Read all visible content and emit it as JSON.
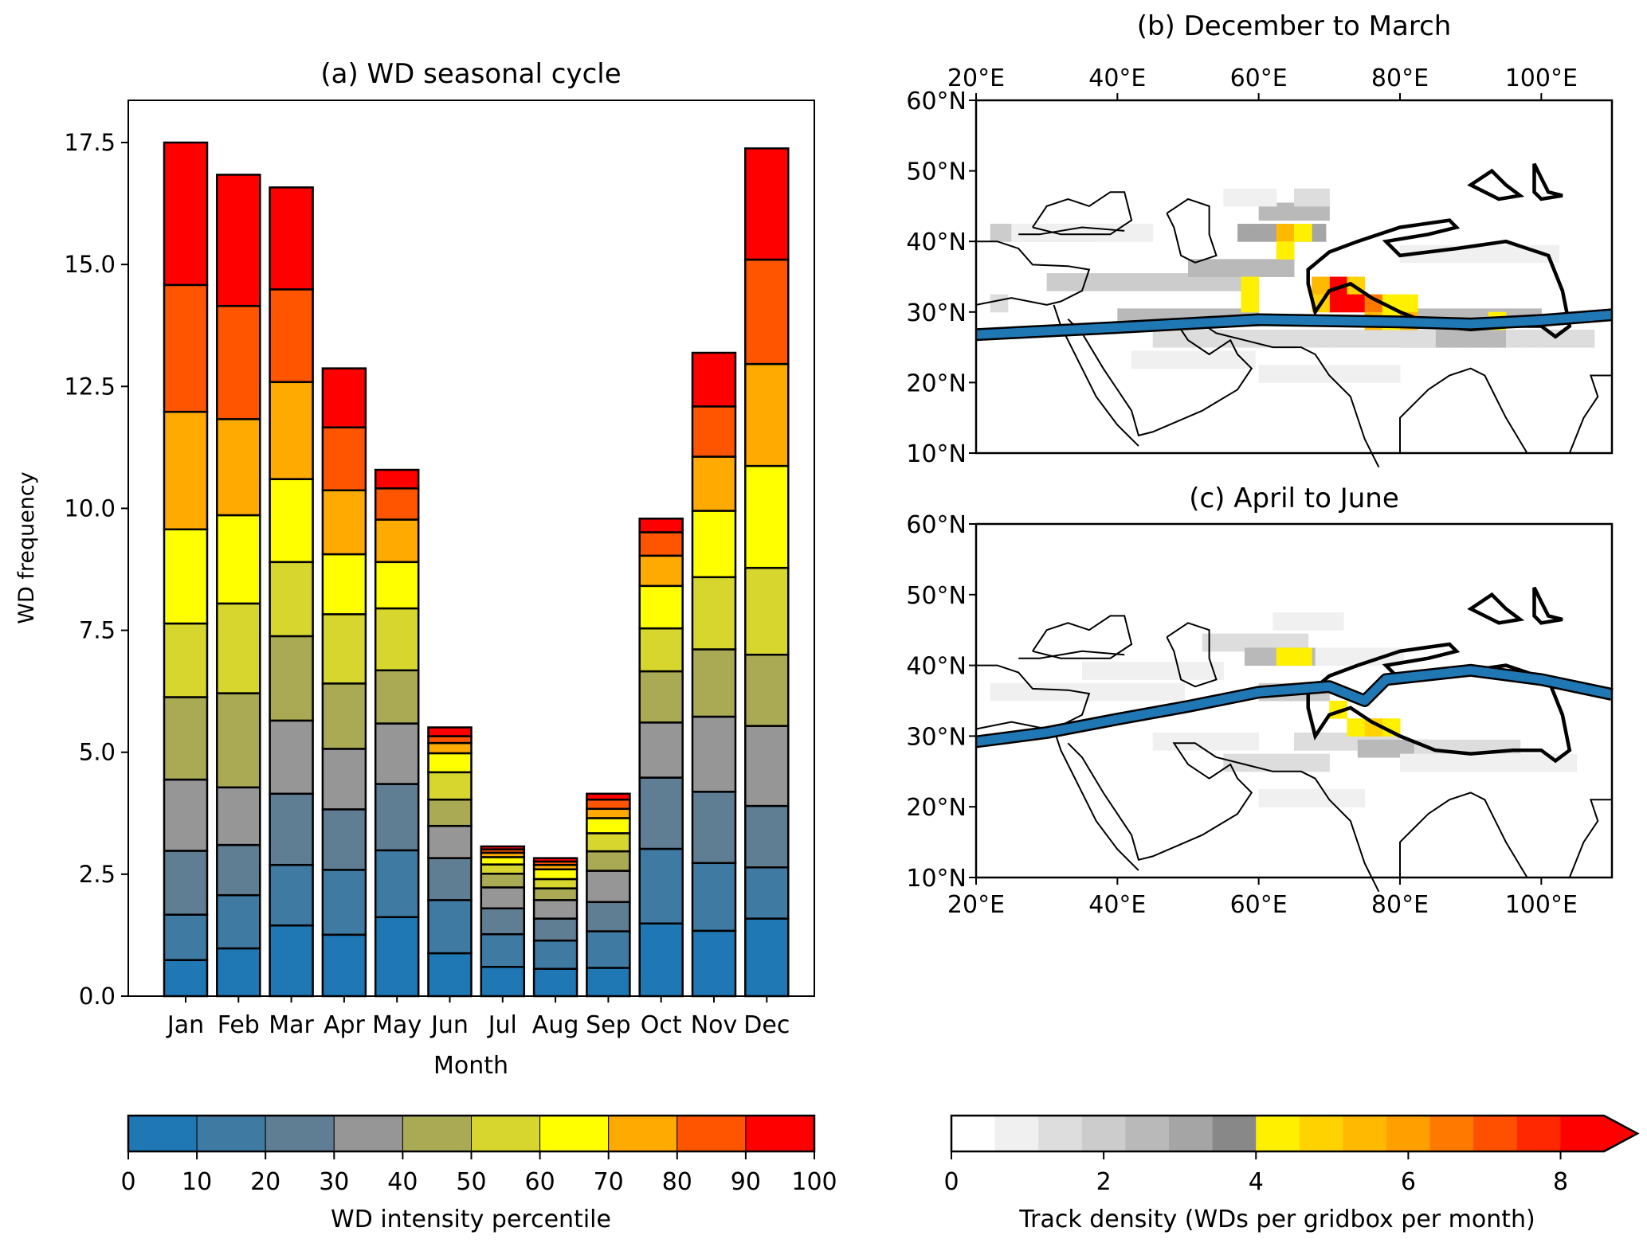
{
  "chart_data": [
    {
      "type": "bar",
      "stacked": true,
      "title": "(a) WD seasonal cycle",
      "xlabel": "Month",
      "ylabel": "WD frequency",
      "ylim": [
        0,
        18.4
      ],
      "yticks": [
        "0.0",
        "2.5",
        "5.0",
        "7.5",
        "10.0",
        "12.5",
        "15.0",
        "17.5"
      ],
      "ytick_values": [
        0,
        2.5,
        5,
        7.5,
        10,
        12.5,
        15,
        17.5
      ],
      "categories": [
        "Jan",
        "Feb",
        "Mar",
        "Apr",
        "May",
        "Jun",
        "Jul",
        "Aug",
        "Sep",
        "Oct",
        "Nov",
        "Dec"
      ],
      "segment_colors": [
        "#1f77b4",
        "#3f7aa3",
        "#5f7d93",
        "#969696",
        "#aaaa55",
        "#d6d62f",
        "#ffff00",
        "#ffaa00",
        "#ff5500",
        "#ff0000"
      ],
      "cumulative_tops": [
        [
          0.74,
          1.67,
          2.98,
          4.44,
          6.13,
          7.64,
          9.57,
          11.98,
          14.58,
          17.5
        ],
        [
          0.98,
          2.07,
          3.1,
          4.28,
          6.21,
          8.05,
          9.86,
          11.83,
          14.15,
          16.84
        ],
        [
          1.45,
          2.69,
          4.15,
          5.65,
          7.38,
          8.9,
          10.6,
          12.59,
          14.49,
          16.58
        ],
        [
          1.26,
          2.59,
          3.83,
          5.07,
          6.41,
          7.83,
          9.06,
          10.37,
          11.66,
          12.87
        ],
        [
          1.62,
          2.99,
          4.35,
          5.59,
          6.68,
          7.95,
          8.9,
          9.77,
          10.41,
          10.79
        ],
        [
          0.88,
          1.97,
          2.83,
          3.49,
          4.03,
          4.59,
          4.98,
          5.19,
          5.33,
          5.51
        ],
        [
          0.6,
          1.27,
          1.8,
          2.23,
          2.51,
          2.7,
          2.85,
          2.94,
          3.01,
          3.07
        ],
        [
          0.56,
          1.14,
          1.59,
          1.97,
          2.21,
          2.4,
          2.6,
          2.69,
          2.76,
          2.83
        ],
        [
          0.58,
          1.33,
          1.93,
          2.57,
          2.97,
          3.34,
          3.65,
          3.84,
          4.03,
          4.15
        ],
        [
          1.49,
          3.02,
          4.48,
          5.61,
          6.66,
          7.54,
          8.41,
          9.03,
          9.51,
          9.79
        ],
        [
          1.34,
          2.73,
          4.19,
          5.73,
          7.11,
          8.59,
          9.95,
          11.06,
          12.09,
          13.19
        ],
        [
          1.59,
          2.64,
          3.9,
          5.54,
          7.0,
          8.78,
          10.87,
          12.96,
          15.1,
          17.38
        ]
      ],
      "legend": {
        "type": "colorbar",
        "label": "WD intensity percentile",
        "ticks": [
          "0",
          "10",
          "20",
          "30",
          "40",
          "50",
          "60",
          "70",
          "80",
          "90",
          "100"
        ],
        "placement": "bottom"
      }
    },
    {
      "type": "heatmap",
      "title": "(b) December to March",
      "xlim": [
        20,
        110
      ],
      "ylim": [
        10,
        60
      ],
      "xticks": [
        "20°E",
        "40°E",
        "60°E",
        "80°E",
        "100°E"
      ],
      "xtick_values": [
        20,
        40,
        60,
        80,
        100
      ],
      "yticks": [
        "10°N",
        "20°N",
        "30°N",
        "40°N",
        "50°N",
        "60°N"
      ],
      "ytick_values": [
        10,
        20,
        30,
        40,
        50,
        60
      ],
      "xtick_position": "top",
      "jet_axis_lonlat": [
        [
          20,
          26.8
        ],
        [
          40,
          27.8
        ],
        [
          60,
          28.9
        ],
        [
          80,
          28.6
        ],
        [
          90,
          28.3
        ],
        [
          100,
          28.8
        ],
        [
          110,
          29.6
        ]
      ],
      "density_cells": [
        {
          "lon": 70,
          "lat": 32.5,
          "v": 8.6
        },
        {
          "lon": 72.5,
          "lat": 32.5,
          "v": 4.6
        },
        {
          "lon": 67.5,
          "lat": 32.5,
          "v": 5.2
        },
        {
          "lon": 70,
          "lat": 30,
          "v": 8.6
        },
        {
          "lon": 72.5,
          "lat": 30,
          "v": 8.6
        },
        {
          "lon": 75,
          "lat": 30,
          "v": 6.6
        },
        {
          "lon": 77.5,
          "lat": 30,
          "v": 4.2
        },
        {
          "lon": 80,
          "lat": 30,
          "v": 4.2
        },
        {
          "lon": 67.5,
          "lat": 30,
          "v": 4.6
        },
        {
          "lon": 57.5,
          "lat": 32.5,
          "v": 4.2
        },
        {
          "lon": 57.5,
          "lat": 30,
          "v": 4.2
        },
        {
          "lon": 62.5,
          "lat": 40,
          "v": 5.2
        },
        {
          "lon": 65,
          "lat": 40,
          "v": 4.2
        },
        {
          "lon": 62.5,
          "lat": 37.5,
          "v": 4.2
        },
        {
          "lon": 75,
          "lat": 27.5,
          "v": 5.2
        },
        {
          "lon": 77.5,
          "lat": 27.5,
          "v": 4.2
        },
        {
          "lon": 80,
          "lat": 27.5,
          "v": 5.2
        },
        {
          "lon": 92.5,
          "lat": 27.5,
          "v": 4.2
        }
      ],
      "contour": "black outline (high terrain)",
      "jet_line_color": "#1f77b4"
    },
    {
      "type": "heatmap",
      "title": "(c) April to June",
      "xlim": [
        20,
        110
      ],
      "ylim": [
        10,
        60
      ],
      "xticks": [
        "20°E",
        "40°E",
        "60°E",
        "80°E",
        "100°E"
      ],
      "xtick_values": [
        20,
        40,
        60,
        80,
        100
      ],
      "yticks": [
        "10°N",
        "20°N",
        "30°N",
        "40°N",
        "50°N",
        "60°N"
      ],
      "ytick_values": [
        10,
        20,
        30,
        40,
        50,
        60
      ],
      "xtick_position": "bottom",
      "jet_axis_lonlat": [
        [
          20,
          29.2
        ],
        [
          30,
          30.5
        ],
        [
          40,
          32.4
        ],
        [
          50,
          34.2
        ],
        [
          60,
          36.2
        ],
        [
          70,
          37.0
        ],
        [
          75,
          35.0
        ],
        [
          78,
          38.0
        ],
        [
          90,
          39.3
        ],
        [
          100,
          38.0
        ],
        [
          110,
          35.9
        ]
      ],
      "density_cells": [
        {
          "lon": 62.5,
          "lat": 40,
          "v": 4.2
        },
        {
          "lon": 65,
          "lat": 40,
          "v": 4.2
        },
        {
          "lon": 70,
          "lat": 32.5,
          "v": 4.2
        },
        {
          "lon": 72.5,
          "lat": 30,
          "v": 4.2
        },
        {
          "lon": 75,
          "lat": 30,
          "v": 4.8
        },
        {
          "lon": 77.5,
          "lat": 30,
          "v": 4.2
        }
      ],
      "contour": "black outline (high terrain)",
      "jet_line_color": "#1f77b4"
    },
    {
      "type": "colorbar",
      "label": "Track density (WDs per gridbox per month)",
      "range": [
        0,
        8.57
      ],
      "extend": "max",
      "ticks": [
        "0",
        "2",
        "4",
        "6",
        "8"
      ],
      "tick_values": [
        0,
        2,
        4,
        6,
        8
      ],
      "colors": [
        "#ffffff",
        "#f0f0f0",
        "#dddddd",
        "#cccccc",
        "#b9b9b9",
        "#a5a5a5",
        "#888888",
        "#fff000",
        "#ffd200",
        "#ffb900",
        "#ff9f00",
        "#ff7800",
        "#ff5000",
        "#ff2800",
        "#ff0000"
      ],
      "placement": "bottom-right"
    }
  ]
}
